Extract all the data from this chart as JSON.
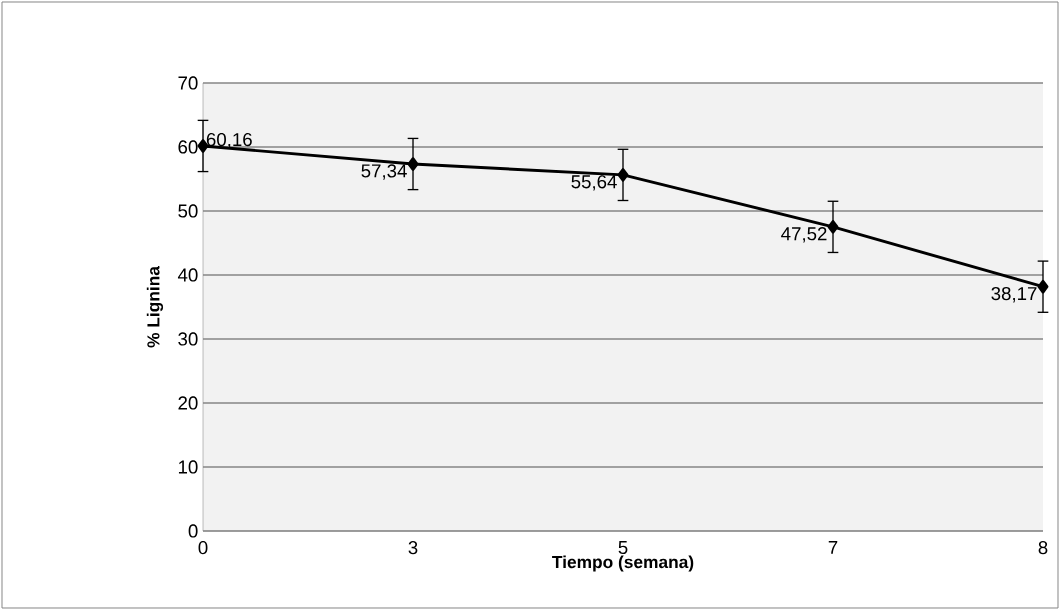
{
  "chart_data": {
    "type": "line",
    "xlabel": "Tiempo (semana)",
    "ylabel": "% Lignina",
    "categories": [
      "0",
      "3",
      "5",
      "7",
      "8"
    ],
    "values": [
      60.16,
      57.34,
      55.64,
      47.52,
      38.17
    ],
    "value_labels": [
      "60,16",
      "57,34",
      "55,64",
      "47,52",
      "38,17"
    ],
    "errors": [
      4,
      4,
      4,
      4,
      4
    ],
    "color": "#000000",
    "marker": "diamond",
    "line_style": "solid",
    "ylim": [
      0,
      70
    ],
    "yticks": [
      0,
      10,
      20,
      30,
      40,
      50,
      60,
      70
    ],
    "grid": "y"
  }
}
